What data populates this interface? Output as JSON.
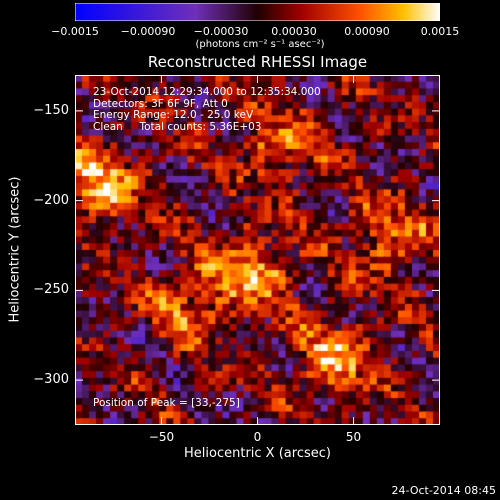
{
  "chart_data": {
    "type": "heatmap",
    "title": "Reconstructed RHESSI Image",
    "xlabel": "Heliocentric X (arcsec)",
    "ylabel": "Heliocentric Y (arcsec)",
    "xlim": [
      -95,
      95
    ],
    "ylim": [
      -325,
      -130
    ],
    "x_ticks": [
      {
        "value": -50,
        "label": "−50"
      },
      {
        "value": 0,
        "label": "0"
      },
      {
        "value": 50,
        "label": "50"
      }
    ],
    "y_ticks": [
      {
        "value": -150,
        "label": "−150"
      },
      {
        "value": -200,
        "label": "−200"
      },
      {
        "value": -250,
        "label": "−250"
      },
      {
        "value": -300,
        "label": "−300"
      }
    ],
    "colorbar": {
      "range": [
        -0.0015,
        0.0015
      ],
      "tick_labels": [
        {
          "value": -0.0015,
          "label": "−0.0015"
        },
        {
          "value": -0.0009,
          "label": "−0.00090"
        },
        {
          "value": -0.0003,
          "label": "−0.00030"
        },
        {
          "value": 0.0003,
          "label": "0.00030"
        },
        {
          "value": 0.0009,
          "label": "0.00090"
        },
        {
          "value": 0.0015,
          "label": "0.0015"
        }
      ],
      "unit_label": "(photons cm⁻² s⁻¹ asec⁻²)"
    },
    "annotations": [
      "23-Oct-2014 12:29:34.000 to 12:35:34.000",
      "Detectors: 3F 6F 9F, Att 0",
      "Energy Range: 12.0 - 25.0 keV",
      "Clean     Total counts: 5.36E+03"
    ],
    "peak_label": "Position of Peak = [33,-275]",
    "peak": [
      33,
      -275
    ],
    "grid": false
  },
  "timestamp": "24-Oct-2014 08:45",
  "colors": {
    "background": "#000000",
    "text": "#ffffff"
  }
}
